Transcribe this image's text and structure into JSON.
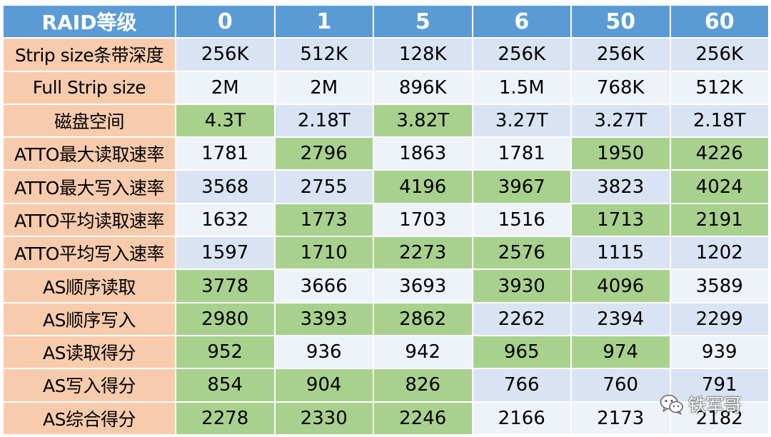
{
  "table": {
    "header_label": "RAID等级",
    "levels": [
      "0",
      "1",
      "5",
      "6",
      "50",
      "60"
    ],
    "rows": [
      {
        "label": "Strip size条带深度",
        "values": [
          "256K",
          "512K",
          "128K",
          "256K",
          "256K",
          "256K"
        ],
        "fills": [
          "blue",
          "blue",
          "blue",
          "blue",
          "blue",
          "blue"
        ]
      },
      {
        "label": "Full Strip size",
        "values": [
          "2M",
          "2M",
          "896K",
          "1.5M",
          "768K",
          "512K"
        ],
        "fills": [
          "light",
          "light",
          "light",
          "light",
          "light",
          "light"
        ]
      },
      {
        "label": "磁盘空间",
        "values": [
          "4.3T",
          "2.18T",
          "3.82T",
          "3.27T",
          "3.27T",
          "2.18T"
        ],
        "fills": [
          "green",
          "blue",
          "green",
          "blue",
          "blue",
          "blue"
        ]
      },
      {
        "label": "ATTO最大读取速率",
        "values": [
          "1781",
          "2796",
          "1863",
          "1781",
          "1950",
          "4226"
        ],
        "fills": [
          "light",
          "green",
          "light",
          "light",
          "green",
          "green"
        ]
      },
      {
        "label": "ATTO最大写入速率",
        "values": [
          "3568",
          "2755",
          "4196",
          "3967",
          "3823",
          "4024"
        ],
        "fills": [
          "blue",
          "blue",
          "green",
          "green",
          "blue",
          "green"
        ]
      },
      {
        "label": "ATTO平均读取速率",
        "values": [
          "1632",
          "1773",
          "1703",
          "1516",
          "1713",
          "2191"
        ],
        "fills": [
          "light",
          "green",
          "light",
          "light",
          "green",
          "green"
        ]
      },
      {
        "label": "ATTO平均写入速率",
        "values": [
          "1597",
          "1710",
          "2273",
          "2576",
          "1115",
          "1202"
        ],
        "fills": [
          "blue",
          "green",
          "green",
          "green",
          "blue",
          "blue"
        ]
      },
      {
        "label": "AS顺序读取",
        "values": [
          "3778",
          "3666",
          "3693",
          "3930",
          "4096",
          "3589"
        ],
        "fills": [
          "green",
          "light",
          "light",
          "green",
          "green",
          "light"
        ]
      },
      {
        "label": "AS顺序写入",
        "values": [
          "2980",
          "3393",
          "2862",
          "2262",
          "2394",
          "2299"
        ],
        "fills": [
          "green",
          "green",
          "green",
          "blue",
          "blue",
          "blue"
        ]
      },
      {
        "label": "AS读取得分",
        "values": [
          "952",
          "936",
          "942",
          "965",
          "974",
          "939"
        ],
        "fills": [
          "green",
          "light",
          "light",
          "green",
          "green",
          "light"
        ]
      },
      {
        "label": "AS写入得分",
        "values": [
          "854",
          "904",
          "826",
          "766",
          "760",
          "791"
        ],
        "fills": [
          "green",
          "green",
          "green",
          "blue",
          "blue",
          "blue"
        ]
      },
      {
        "label": "AS综合得分",
        "values": [
          "2278",
          "2330",
          "2246",
          "2166",
          "2173",
          "2182"
        ],
        "fills": [
          "green",
          "green",
          "green",
          "light",
          "light",
          "light"
        ]
      }
    ]
  },
  "colors": {
    "header": "#5b9bd5",
    "row_label": "#f8cbad",
    "cell_blue": "#dae3f3",
    "cell_light": "#eef3fa",
    "cell_green": "#a9d18e"
  },
  "watermark": {
    "icon": "wechat-icon",
    "text": "铁军哥"
  }
}
